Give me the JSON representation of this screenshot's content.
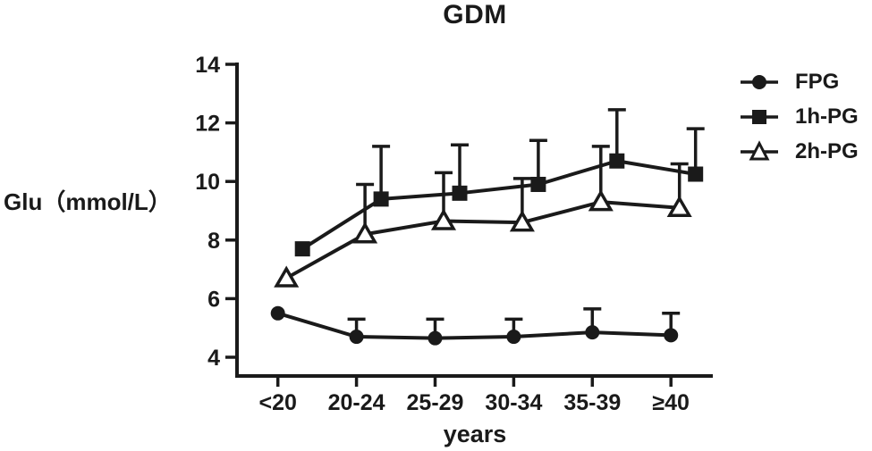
{
  "chart_data": {
    "type": "line",
    "title": "GDM",
    "xlabel": "years",
    "ylabel": "Glu（mmol/L）",
    "categories": [
      "<20",
      "20-24",
      "25-29",
      "30-34",
      "35-39",
      "≥40"
    ],
    "y_ticks": [
      4,
      6,
      8,
      10,
      12,
      14
    ],
    "ylim": [
      4,
      14
    ],
    "grid": false,
    "legend_position": "right",
    "error_bars": "upper_only",
    "line_color": "#1a1a1a",
    "series": [
      {
        "name": "FPG",
        "marker": "filled-circle",
        "values": [
          5.5,
          4.7,
          4.65,
          4.7,
          4.85,
          4.75
        ],
        "upper_error": [
          0,
          0.6,
          0.65,
          0.6,
          0.8,
          0.75
        ]
      },
      {
        "name": "1h-PG",
        "marker": "filled-square",
        "values": [
          7.7,
          9.4,
          9.6,
          9.9,
          10.7,
          10.25
        ],
        "upper_error": [
          0,
          1.8,
          1.65,
          1.5,
          1.75,
          1.55
        ]
      },
      {
        "name": "2h-PG",
        "marker": "open-triangle",
        "values": [
          6.7,
          8.2,
          8.65,
          8.6,
          9.3,
          9.1
        ],
        "upper_error": [
          0,
          1.7,
          1.65,
          1.5,
          1.9,
          1.5
        ]
      }
    ]
  }
}
